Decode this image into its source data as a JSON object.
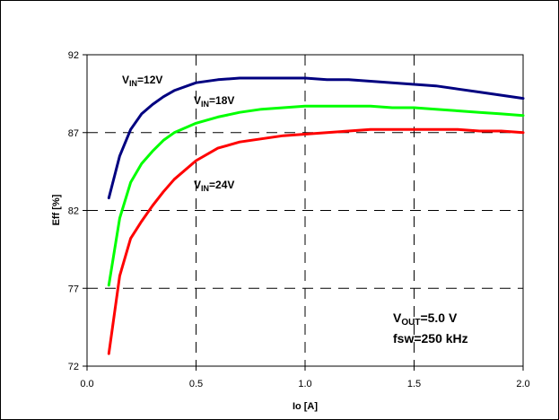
{
  "chart_data": {
    "type": "line",
    "title": "",
    "xlabel": "Io [A]",
    "ylabel": "Eff [%]",
    "xlim": [
      0.0,
      2.0
    ],
    "ylim": [
      72,
      92
    ],
    "x_ticks": [
      "0.0",
      "0.5",
      "1.0",
      "1.5",
      "2.0"
    ],
    "y_ticks": [
      "72",
      "77",
      "82",
      "87",
      "92"
    ],
    "grid": "dashed",
    "legend": "inline labels",
    "series": [
      {
        "label_main": "V",
        "label_sub": "IN",
        "label_rest": "=12V",
        "color": "#000080",
        "x": [
          0.1,
          0.15,
          0.2,
          0.25,
          0.3,
          0.35,
          0.4,
          0.5,
          0.6,
          0.7,
          0.8,
          0.9,
          1.0,
          1.1,
          1.2,
          1.3,
          1.4,
          1.5,
          1.6,
          1.7,
          1.8,
          1.9,
          2.0
        ],
        "y": [
          82.8,
          85.5,
          87.2,
          88.2,
          88.8,
          89.3,
          89.7,
          90.2,
          90.4,
          90.5,
          90.5,
          90.5,
          90.5,
          90.4,
          90.4,
          90.3,
          90.2,
          90.1,
          90.0,
          89.8,
          89.6,
          89.4,
          89.2
        ]
      },
      {
        "label_main": "V",
        "label_sub": "IN",
        "label_rest": "=18V",
        "color": "#00ff00",
        "x": [
          0.1,
          0.15,
          0.2,
          0.25,
          0.3,
          0.35,
          0.4,
          0.5,
          0.6,
          0.7,
          0.8,
          0.9,
          1.0,
          1.1,
          1.2,
          1.3,
          1.4,
          1.5,
          1.6,
          1.7,
          1.8,
          1.9,
          2.0
        ],
        "y": [
          77.2,
          81.5,
          83.8,
          85.0,
          85.8,
          86.5,
          87.0,
          87.6,
          88.0,
          88.3,
          88.5,
          88.6,
          88.7,
          88.7,
          88.7,
          88.7,
          88.6,
          88.6,
          88.5,
          88.4,
          88.3,
          88.2,
          88.1
        ]
      },
      {
        "label_main": "V",
        "label_sub": "IN",
        "label_rest": "=24V",
        "color": "#ff0000",
        "x": [
          0.1,
          0.15,
          0.2,
          0.25,
          0.3,
          0.35,
          0.4,
          0.5,
          0.6,
          0.7,
          0.8,
          0.9,
          1.0,
          1.1,
          1.2,
          1.3,
          1.4,
          1.5,
          1.6,
          1.7,
          1.8,
          1.9,
          2.0
        ],
        "y": [
          72.8,
          77.8,
          80.2,
          81.3,
          82.3,
          83.2,
          84.0,
          85.2,
          86.0,
          86.4,
          86.6,
          86.8,
          86.9,
          87.0,
          87.1,
          87.2,
          87.2,
          87.2,
          87.2,
          87.2,
          87.1,
          87.1,
          87.0
        ]
      }
    ],
    "annotations": {
      "vout_main": "V",
      "vout_sub": "OUT",
      "vout_rest": "=5.0 V",
      "fsw": "fsw=250 kHz"
    }
  }
}
